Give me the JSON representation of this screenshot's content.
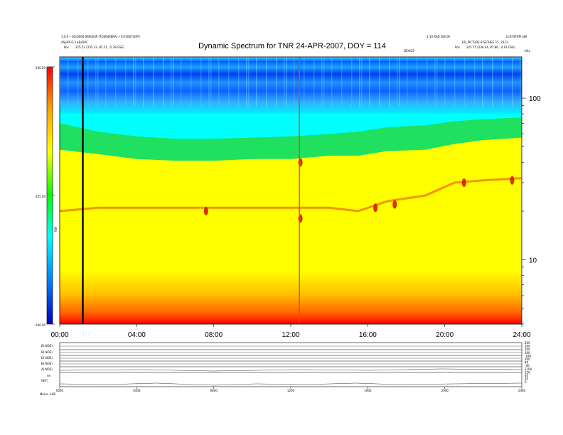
{
  "header": {
    "left_line1": "1.0.0 • SCIQ006 SPACESP (TOEOB/BRA) • 07/2007(S)PC",
    "left_line2": "ASpRS 0.3 aBsD0C",
    "left_pos_label": "Pos",
    "left_pos_value": "225.52 (235.33, 85.21, -5.39 GSE)",
    "right_line1": "1.10 RED DLFOX",
    "right_line1b": "LCSYSTEM aNI",
    "right_line2": "ED_PICTURE 8 SETHEE 15, 2013",
    "right_pos_label": "Pos",
    "right_pos_value": "225.75 (236.34, 87.86, -4.97 GSE)",
    "small_label_mid": "DEVICE",
    "freq_unit": "kHz",
    "colorbar_unit": "TNR",
    "bottom_left": "Meius  -LHS"
  },
  "chart_data": {
    "type": "heatmap",
    "title": "Dynamic Spectrum for TNR 24-APR-2007, DOY = 114",
    "x_tick_labels": [
      "00:00",
      "04:00",
      "08:00",
      "12:00",
      "16:00",
      "20:00",
      "24:00"
    ],
    "x_range_hours": [
      0,
      24
    ],
    "y_scale": "log",
    "y_range_khz": [
      4,
      180
    ],
    "y_tick_labels": [
      {
        "value": 100,
        "label": "100"
      },
      {
        "value": 10,
        "label": "10"
      }
    ],
    "colorbar": {
      "range_db": [
        -160,
        -130
      ],
      "tick_labels": [
        "-130.00",
        "-145.00",
        "-160.00"
      ],
      "colors": [
        "#0000ff",
        "#00c0ff",
        "#00ffff",
        "#00ff00",
        "#ffff00",
        "#ffa000",
        "#ff0000"
      ]
    },
    "black_vertical_line_hour": 1.2,
    "spike_hour": 12.45,
    "band_profile": [
      {
        "h": 0.0,
        "cyan_green": 70,
        "green_yellow": 48,
        "red": 20
      },
      {
        "h": 2.0,
        "cyan_green": 62,
        "green_yellow": 45,
        "red": 21
      },
      {
        "h": 4.0,
        "cyan_green": 58,
        "green_yellow": 42,
        "red": 21
      },
      {
        "h": 6.0,
        "cyan_green": 56,
        "green_yellow": 41,
        "red": 21
      },
      {
        "h": 8.0,
        "cyan_green": 56,
        "green_yellow": 41,
        "red": 21
      },
      {
        "h": 10.0,
        "cyan_green": 57,
        "green_yellow": 42,
        "red": 21
      },
      {
        "h": 12.0,
        "cyan_green": 58,
        "green_yellow": 42,
        "red": 21
      },
      {
        "h": 14.0,
        "cyan_green": 60,
        "green_yellow": 44,
        "red": 21
      },
      {
        "h": 15.5,
        "cyan_green": 62,
        "green_yellow": 44,
        "red": 20
      },
      {
        "h": 17.0,
        "cyan_green": 66,
        "green_yellow": 47,
        "red": 23
      },
      {
        "h": 19.0,
        "cyan_green": 68,
        "green_yellow": 48,
        "red": 25
      },
      {
        "h": 20.5,
        "cyan_green": 72,
        "green_yellow": 52,
        "red": 30
      },
      {
        "h": 22.0,
        "cyan_green": 74,
        "green_yellow": 55,
        "red": 31
      },
      {
        "h": 24.0,
        "cyan_green": 76,
        "green_yellow": 57,
        "red": 32
      }
    ],
    "red_blobs": [
      {
        "h": 7.6,
        "khz": 20
      },
      {
        "h": 12.5,
        "khz": 18
      },
      {
        "h": 12.5,
        "khz": 40
      },
      {
        "h": 16.4,
        "khz": 21
      },
      {
        "h": 17.4,
        "khz": 22
      },
      {
        "h": 21.0,
        "khz": 30
      },
      {
        "h": 23.5,
        "khz": 31
      }
    ]
  },
  "sub_panels": {
    "labels": [
      "B(.NOE)",
      "B(.NOE)",
      "D(.NOE)",
      "B(.NOE)",
      "A(.NOE)",
      "ne",
      "(B(F)"
    ],
    "right_labels": [
      "200",
      "100",
      "200",
      "100",
      "-180",
      "200",
      "40",
      "-40",
      "2100",
      "220",
      "40",
      "20",
      "0"
    ],
    "x_tick_labels": [
      "0000",
      "0400",
      "0800",
      "1200",
      "1600",
      "2000",
      "2400"
    ]
  }
}
